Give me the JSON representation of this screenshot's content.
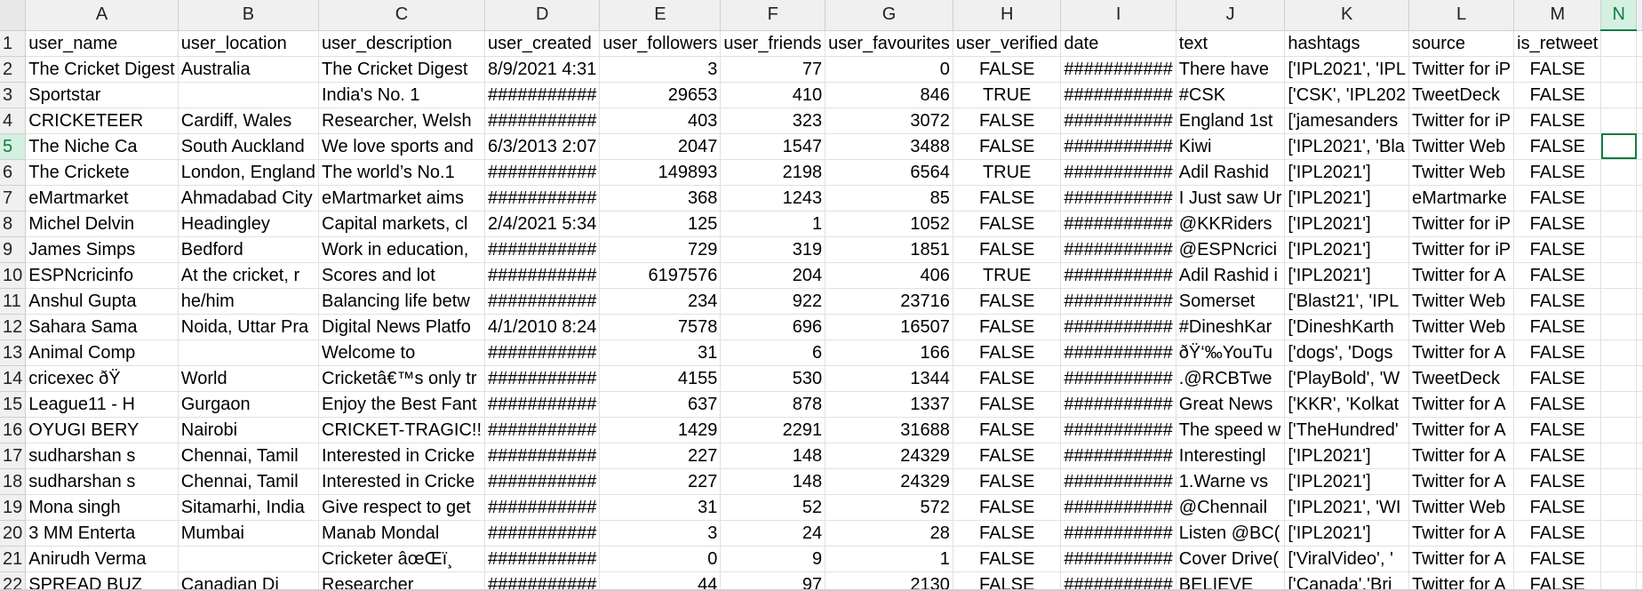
{
  "sheet": {
    "columns": [
      "A",
      "B",
      "C",
      "D",
      "E",
      "F",
      "G",
      "H",
      "I",
      "J",
      "K",
      "L",
      "M",
      "N"
    ],
    "selected_column": "N",
    "selected_row": "5",
    "active_cell": "N5",
    "rows": [
      {
        "n": "1",
        "cells": [
          "user_name",
          "user_location",
          "user_description",
          "user_created",
          "user_followers",
          "user_friends",
          "user_favourites",
          "user_verified",
          "date",
          "text",
          "hashtags",
          "source",
          "is_retweet",
          ""
        ]
      },
      {
        "n": "2",
        "cells": [
          "The Cricket Digest",
          "Australia",
          "The Cricket Digest",
          "8/9/2021 4:31",
          "3",
          "77",
          "0",
          "FALSE",
          "###########",
          "There have",
          "['IPL2021', 'IPL",
          "Twitter for iP",
          "FALSE",
          ""
        ]
      },
      {
        "n": "3",
        "cells": [
          "Sportstar",
          "",
          "India's No. 1",
          "###########",
          "29653",
          "410",
          "846",
          "TRUE",
          "###########",
          "#CSK",
          "['CSK', 'IPL202",
          "TweetDeck",
          "FALSE",
          ""
        ]
      },
      {
        "n": "4",
        "cells": [
          "CRICKETEER",
          "Cardiff, Wales",
          "Researcher, Welsh",
          "###########",
          "403",
          "323",
          "3072",
          "FALSE",
          "###########",
          "England 1st",
          "['jamesanders",
          "Twitter for iP",
          "FALSE",
          ""
        ]
      },
      {
        "n": "5",
        "cells": [
          "The Niche Ca",
          "South Auckland",
          "We love sports and",
          "6/3/2013 2:07",
          "2047",
          "1547",
          "3488",
          "FALSE",
          "###########",
          "Kiwi",
          "['IPL2021', 'Bla",
          "Twitter Web",
          "FALSE",
          ""
        ]
      },
      {
        "n": "6",
        "cells": [
          "The Crickete",
          "London, England",
          "The world’s No.1",
          "###########",
          "149893",
          "2198",
          "6564",
          "TRUE",
          "###########",
          "Adil Rashid",
          "['IPL2021']",
          "Twitter Web",
          "FALSE",
          ""
        ]
      },
      {
        "n": "7",
        "cells": [
          "eMartmarket",
          "Ahmadabad City",
          "eMartmarket aims",
          "###########",
          "368",
          "1243",
          "85",
          "FALSE",
          "###########",
          "I Just saw Ur",
          "['IPL2021']",
          "eMartmarke",
          "FALSE",
          ""
        ]
      },
      {
        "n": "8",
        "cells": [
          "Michel Delvin",
          "Headingley",
          "Capital markets, cl",
          "2/4/2021 5:34",
          "125",
          "1",
          "1052",
          "FALSE",
          "###########",
          "@KKRiders",
          "['IPL2021']",
          "Twitter for iP",
          "FALSE",
          ""
        ]
      },
      {
        "n": "9",
        "cells": [
          "James Simps",
          "Bedford",
          "Work in education,",
          "###########",
          "729",
          "319",
          "1851",
          "FALSE",
          "###########",
          "@ESPNcrici",
          "['IPL2021']",
          "Twitter for iP",
          "FALSE",
          ""
        ]
      },
      {
        "n": "10",
        "cells": [
          "ESPNcricinfo",
          "At the cricket, r",
          "Scores and lot",
          "###########",
          "6197576",
          "204",
          "406",
          "TRUE",
          "###########",
          "Adil Rashid i",
          "['IPL2021']",
          "Twitter for A",
          "FALSE",
          ""
        ]
      },
      {
        "n": "11",
        "cells": [
          "Anshul Gupta",
          "he/him",
          "Balancing life betw",
          "###########",
          "234",
          "922",
          "23716",
          "FALSE",
          "###########",
          "Somerset",
          "['Blast21', 'IPL",
          "Twitter Web",
          "FALSE",
          ""
        ]
      },
      {
        "n": "12",
        "cells": [
          "Sahara Sama",
          "Noida, Uttar Pra",
          "Digital News Platfo",
          "4/1/2010 8:24",
          "7578",
          "696",
          "16507",
          "FALSE",
          "###########",
          "#DineshKar",
          "['DineshKarth",
          "Twitter Web",
          "FALSE",
          ""
        ]
      },
      {
        "n": "13",
        "cells": [
          "Animal Comp",
          "",
          "Welcome to",
          "###########",
          "31",
          "6",
          "166",
          "FALSE",
          "###########",
          "ðŸ‘‰YouTu",
          "['dogs', 'Dogs",
          "Twitter for A",
          "FALSE",
          ""
        ]
      },
      {
        "n": "14",
        "cells": [
          "cricexec ðŸ",
          "World",
          "Cricketâ€™s only tr",
          "###########",
          "4155",
          "530",
          "1344",
          "FALSE",
          "###########",
          ".@RCBTwe",
          "['PlayBold', 'W",
          "TweetDeck",
          "FALSE",
          ""
        ]
      },
      {
        "n": "15",
        "cells": [
          "League11 - H",
          "Gurgaon",
          "Enjoy the Best Fant",
          "###########",
          "637",
          "878",
          "1337",
          "FALSE",
          "###########",
          "Great News",
          "['KKR', 'Kolkat",
          "Twitter for A",
          "FALSE",
          ""
        ]
      },
      {
        "n": "16",
        "cells": [
          "OYUGI BERY",
          "Nairobi",
          "CRICKET-TRAGIC!!",
          "###########",
          "1429",
          "2291",
          "31688",
          "FALSE",
          "###########",
          "The speed w",
          "['TheHundred'",
          "Twitter for A",
          "FALSE",
          ""
        ]
      },
      {
        "n": "17",
        "cells": [
          "sudharshan s",
          "Chennai, Tamil",
          "Interested in Cricke",
          "###########",
          "227",
          "148",
          "24329",
          "FALSE",
          "###########",
          "Interestingl",
          "['IPL2021']",
          "Twitter for A",
          "FALSE",
          ""
        ]
      },
      {
        "n": "18",
        "cells": [
          "sudharshan s",
          "Chennai, Tamil",
          "Interested in Cricke",
          "###########",
          "227",
          "148",
          "24329",
          "FALSE",
          "###########",
          "1.Warne vs",
          "['IPL2021']",
          "Twitter for A",
          "FALSE",
          ""
        ]
      },
      {
        "n": "19",
        "cells": [
          "Mona singh",
          "Sitamarhi, India",
          "Give respect to get",
          "###########",
          "31",
          "52",
          "572",
          "FALSE",
          "###########",
          "@Chennail",
          "['IPL2021', 'WI",
          "Twitter Web",
          "FALSE",
          ""
        ]
      },
      {
        "n": "20",
        "cells": [
          "3 MM Enterta",
          "Mumbai",
          "Manab Mondal",
          "###########",
          "3",
          "24",
          "28",
          "FALSE",
          "###########",
          "Listen @BC(",
          "['IPL2021']",
          "Twitter for A",
          "FALSE",
          ""
        ]
      },
      {
        "n": "21",
        "cells": [
          "Anirudh Verma",
          "",
          "Cricketer âœŒï¸",
          "###########",
          "0",
          "9",
          "1",
          "FALSE",
          "###########",
          "Cover Drive(",
          "['ViralVideo', '",
          "Twitter for A",
          "FALSE",
          ""
        ]
      },
      {
        "n": "22",
        "cells": [
          "SPREAD BUZ",
          "Canadian Di",
          "Researcher",
          "###########",
          "44",
          "97",
          "2130",
          "FALSE",
          "###########",
          "BELIEVE",
          "['Canada','Bri",
          "Twitter for A",
          "FALSE",
          ""
        ]
      }
    ]
  }
}
